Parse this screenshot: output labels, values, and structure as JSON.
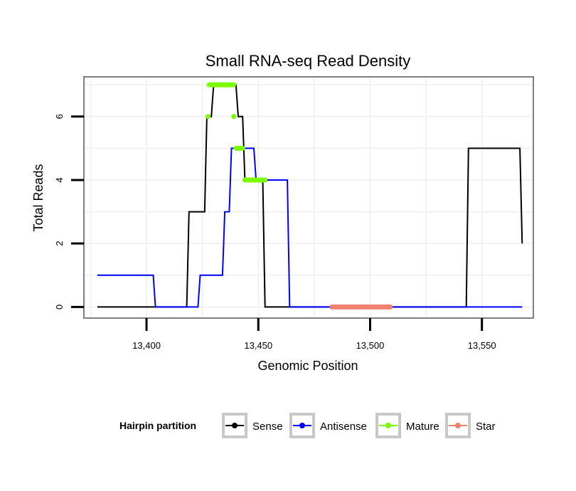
{
  "chart_data": {
    "type": "line",
    "title": "Small RNA-seq Read Density",
    "xlabel": "Genomic Position",
    "ylabel": "Total Reads",
    "xlim": [
      13372,
      13573
    ],
    "ylim": [
      -0.35,
      7.25
    ],
    "xticks": [
      13400,
      13450,
      13500,
      13550
    ],
    "xtick_labels": [
      "13,400",
      "13,450",
      "13,500",
      "13,550"
    ],
    "yticks": [
      0,
      2,
      4,
      6
    ],
    "ytick_labels": [
      "0",
      "2",
      "4",
      "6"
    ],
    "grid": true,
    "legend": {
      "title": "Hairpin partition",
      "position": "bottom",
      "entries": [
        {
          "label": "Sense",
          "color": "#000000"
        },
        {
          "label": "Antisense",
          "color": "#0000ff"
        },
        {
          "label": "Mature",
          "color": "#7cfc00"
        },
        {
          "label": "Star",
          "color": "#f08070"
        }
      ]
    },
    "series": [
      {
        "name": "Sense",
        "color": "#000000",
        "x": [
          13378,
          13418,
          13419,
          13426,
          13427,
          13429,
          13430,
          13440,
          13441,
          13443,
          13444,
          13452,
          13453,
          13543,
          13544,
          13567,
          13568
        ],
        "y": [
          0,
          0,
          3,
          3,
          6,
          6,
          7,
          7,
          6,
          6,
          4,
          4,
          0,
          0,
          5,
          5,
          2
        ]
      },
      {
        "name": "Antisense",
        "color": "#0000ff",
        "x": [
          13378,
          13403,
          13404,
          13423,
          13424,
          13434,
          13435,
          13437,
          13438,
          13448,
          13449,
          13463,
          13464,
          13568
        ],
        "y": [
          1,
          1,
          0,
          0,
          1,
          1,
          3,
          3,
          5,
          5,
          4,
          4,
          0,
          0
        ]
      },
      {
        "name": "Mature",
        "color": "#7cfc00",
        "segments": [
          {
            "x": [
              13428,
              13439
            ],
            "y": [
              7,
              7
            ]
          },
          {
            "x": [
              13427.5,
              13427.5
            ],
            "y": [
              6,
              6
            ]
          },
          {
            "x": [
              13439,
              13439
            ],
            "y": [
              6,
              6
            ]
          },
          {
            "x": [
              13440,
              13443
            ],
            "y": [
              5,
              5
            ]
          },
          {
            "x": [
              13444,
              13453
            ],
            "y": [
              4,
              4
            ]
          }
        ]
      },
      {
        "name": "Star",
        "color": "#f08070",
        "segments": [
          {
            "x": [
              13483,
              13509
            ],
            "y": [
              0,
              0
            ]
          }
        ]
      }
    ]
  }
}
